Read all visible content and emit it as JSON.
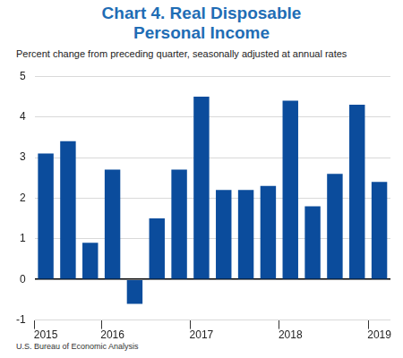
{
  "chart_data": {
    "type": "bar",
    "title": "Chart 4. Real Disposable Personal Income",
    "subtitle": "Percent change from preceding quarter, seasonally adjusted at annual rates",
    "source": "U.S. Bureau of Economic Analysis",
    "categories": [
      "2015",
      null,
      null,
      "2016",
      null,
      null,
      null,
      "2017",
      null,
      null,
      null,
      "2018",
      null,
      null,
      null,
      "2019"
    ],
    "values": [
      3.1,
      3.4,
      0.9,
      2.7,
      -0.6,
      1.5,
      2.7,
      4.5,
      2.2,
      2.2,
      2.3,
      4.4,
      1.8,
      2.6,
      4.3,
      2.4
    ],
    "color": "#0b4c9c",
    "title_color": "#1f6db5",
    "ylim": [
      -1,
      5
    ],
    "yticks": [
      -1,
      0,
      1,
      2,
      3,
      4,
      5
    ],
    "grid": true
  }
}
